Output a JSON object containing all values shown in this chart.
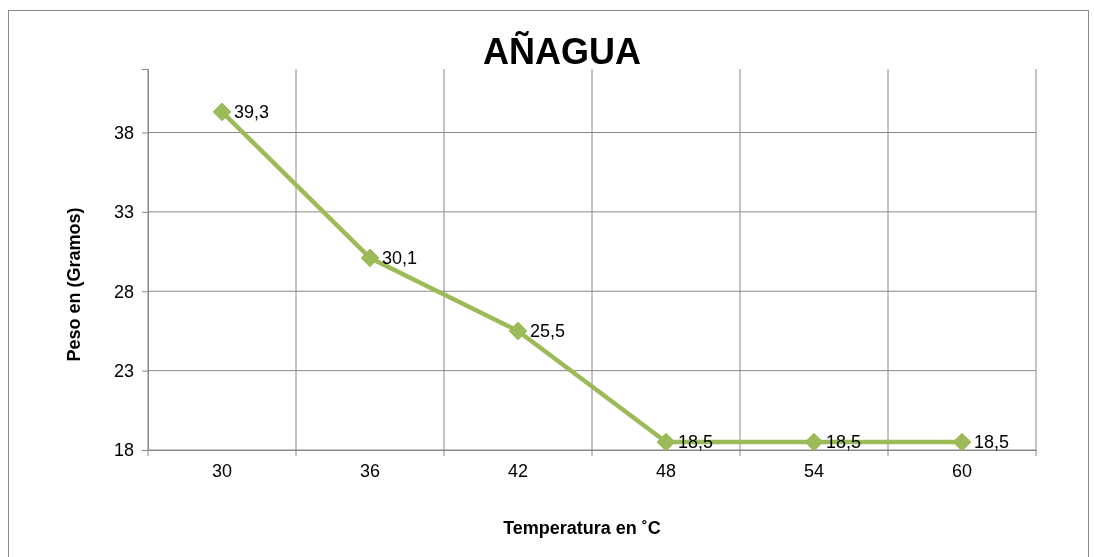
{
  "chart_data": {
    "type": "line",
    "title": "AÑAGUA",
    "xlabel": "Temperatura en ˚C",
    "ylabel": "Peso en (Gramos)",
    "categories": [
      "30",
      "36",
      "42",
      "48",
      "54",
      "60"
    ],
    "series": [
      {
        "color": "#9bbb59",
        "values": [
          39.3,
          30.1,
          25.5,
          18.5,
          18.5,
          18.5
        ],
        "value_labels": [
          "39,3",
          "30,1",
          "25,5",
          "18,5",
          "18,5",
          "18,5"
        ]
      }
    ],
    "ylim": [
      18,
      42
    ],
    "yticks": [
      18,
      23,
      28,
      33,
      38
    ],
    "grid": true,
    "marker": "diamond",
    "line_style": "solid"
  }
}
